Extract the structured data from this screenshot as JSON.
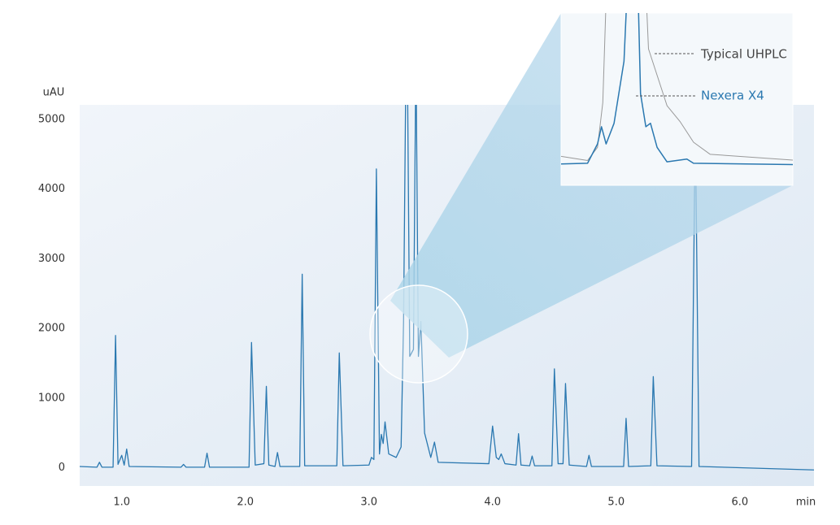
{
  "chart_data": [
    {
      "type": "line",
      "y_label": "uAU",
      "x_label": "min",
      "color": "#2a78b0",
      "x": [
        0.66,
        0.8,
        0.82,
        0.84,
        0.93,
        0.95,
        0.97,
        1.0,
        1.02,
        1.04,
        1.06,
        1.48,
        1.5,
        1.52,
        1.67,
        1.69,
        1.71,
        2.03,
        2.05,
        2.08,
        2.15,
        2.17,
        2.19,
        2.24,
        2.26,
        2.28,
        2.44,
        2.46,
        2.48,
        2.74,
        2.76,
        2.79,
        3.0,
        3.02,
        3.04,
        3.06,
        3.085,
        3.1,
        3.115,
        3.13,
        3.16,
        3.22,
        3.26,
        3.28,
        3.3,
        3.31,
        3.33,
        3.36,
        3.38,
        3.4,
        3.42,
        3.45,
        3.5,
        3.53,
        3.56,
        3.97,
        4.0,
        4.03,
        4.05,
        4.07,
        4.1,
        4.19,
        4.21,
        4.23,
        4.3,
        4.32,
        4.34,
        4.48,
        4.5,
        4.53,
        4.57,
        4.59,
        4.62,
        4.76,
        4.78,
        4.8,
        5.06,
        5.08,
        5.1,
        5.28,
        5.3,
        5.33,
        5.61,
        5.64,
        5.67,
        6.6
      ],
      "values": [
        20,
        10,
        80,
        10,
        10,
        1900,
        50,
        180,
        40,
        270,
        20,
        10,
        50,
        10,
        10,
        210,
        10,
        10,
        1800,
        40,
        60,
        1170,
        40,
        20,
        220,
        20,
        20,
        2780,
        30,
        30,
        1650,
        30,
        40,
        150,
        120,
        4290,
        200,
        480,
        350,
        660,
        200,
        150,
        300,
        2100,
        6000,
        6000,
        1600,
        1700,
        6000,
        1600,
        2100,
        500,
        150,
        370,
        80,
        60,
        600,
        150,
        120,
        200,
        60,
        40,
        490,
        40,
        30,
        170,
        30,
        30,
        1420,
        60,
        60,
        1210,
        40,
        20,
        180,
        20,
        20,
        710,
        20,
        30,
        1310,
        30,
        20,
        5000,
        20,
        -30
      ],
      "xlim": [
        0.66,
        6.6
      ],
      "ylim": [
        -260,
        5210
      ],
      "xticks": [
        {
          "value": 1,
          "label": "1.0"
        },
        {
          "value": 2,
          "label": "2.0"
        },
        {
          "value": 3,
          "label": "3.0"
        },
        {
          "value": 4,
          "label": "4.0"
        },
        {
          "value": 5,
          "label": "5.0"
        },
        {
          "value": 6,
          "label": "6.0"
        }
      ],
      "yticks": [
        0,
        1000,
        2000,
        3000,
        4000,
        5000
      ]
    },
    {
      "type": "line",
      "xlim": [
        3.25,
        3.6
      ],
      "ylim": [
        -300,
        2200
      ],
      "series": [
        {
          "name": "Typical UHPLC",
          "color": "#999999",
          "x": [
            3.25,
            3.29,
            3.305,
            3.313,
            3.32,
            3.376,
            3.382,
            3.41,
            3.43,
            3.45,
            3.475,
            3.6
          ],
          "values": [
            120,
            60,
            250,
            900,
            3000,
            3000,
            1680,
            855,
            620,
            325,
            150,
            65
          ]
        },
        {
          "name": "Nexera X4",
          "color": "#2a78b0",
          "x": [
            3.25,
            3.29,
            3.305,
            3.311,
            3.318,
            3.33,
            3.345,
            3.352,
            3.365,
            3.37,
            3.378,
            3.385,
            3.395,
            3.41,
            3.44,
            3.45,
            3.6
          ],
          "values": [
            10,
            20,
            300,
            550,
            300,
            600,
            1500,
            3000,
            3000,
            1030,
            550,
            600,
            250,
            40,
            80,
            20,
            0
          ]
        }
      ]
    }
  ]
}
